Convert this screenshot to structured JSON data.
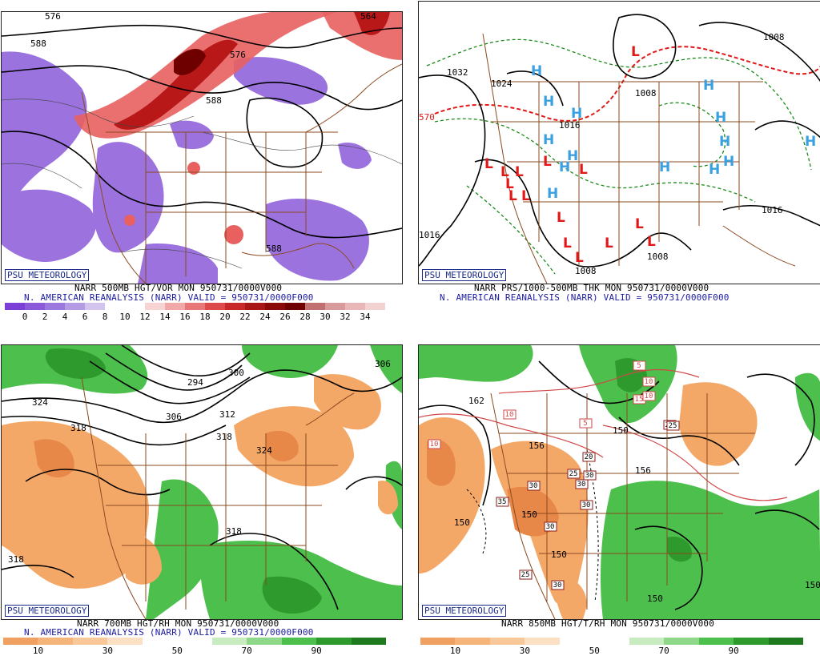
{
  "credit_label": "PSU METEOROLOGY",
  "panels": [
    {
      "id": "p1",
      "caption_line1": "NARR 500MB HGT/VOR MON 950731/0000V000",
      "caption_line2": "N. AMERICAN REANALYSIS (NARR) VALID = 950731/0000F000",
      "colorbar": {
        "colors": [
          "#7b3fd8",
          "#8a5ad9",
          "#9b78dd",
          "#b59be4",
          "#d3c4ef",
          "#ffffff",
          "#ffffff",
          "#f7d3d3",
          "#f0a8a8",
          "#e87878",
          "#dd4a4a",
          "#c82828",
          "#a81616",
          "#8a0a0a",
          "#6e0000",
          "#c07070",
          "#d89a9a",
          "#e9b7b7",
          "#f3d2d2"
        ],
        "labels": [
          "0",
          "2",
          "4",
          "6",
          "8",
          "10",
          "12",
          "14",
          "16",
          "18",
          "20",
          "22",
          "24",
          "26",
          "28",
          "30",
          "32",
          "34"
        ]
      },
      "map_labels": [
        "576",
        "588",
        "576",
        "588",
        "564",
        "588"
      ]
    },
    {
      "id": "p2",
      "caption_line1": "NARR PRS/1000-500MB THK MON 950731/0000V000",
      "caption_line2": "N. AMERICAN REANALYSIS (NARR) VALID = 950731/0000F000",
      "map_labels": [
        "1032",
        "1024",
        "1008",
        "1016",
        "1008",
        "1008",
        "1016",
        "1016",
        "1008",
        "570"
      ],
      "highs": [
        "H",
        "H",
        "H",
        "H",
        "H",
        "H",
        "H",
        "H",
        "H",
        "H",
        "H",
        "H",
        "H",
        "H"
      ],
      "lows": [
        "L",
        "L",
        "L",
        "L",
        "L",
        "L",
        "L",
        "L",
        "L",
        "L",
        "L",
        "L",
        "L",
        "L",
        "L"
      ]
    },
    {
      "id": "p3",
      "caption_line1": "NARR 700MB HGT/RH MON 950731/0000V000",
      "caption_line2": "N. AMERICAN REANALYSIS (NARR) VALID = 950731/0000F000",
      "colorbar": {
        "colors": [
          "#f0a060",
          "#f4b47a",
          "#f8c898",
          "#fce0c4",
          "#ffffff",
          "#ffffff",
          "#c8ecc0",
          "#8fd88a",
          "#4cbf4c",
          "#2e9a2e",
          "#1f7a1f"
        ],
        "labels": [
          "10",
          "30",
          "50",
          "70",
          "90"
        ]
      },
      "map_labels": [
        "324",
        "318",
        "294",
        "300",
        "306",
        "312",
        "318",
        "324",
        "318",
        "318",
        "306"
      ]
    },
    {
      "id": "p4",
      "caption_line1": "NARR 850MB HGT/T/RH MON 950731/0000V000",
      "colorbar": {
        "colors": [
          "#f0a060",
          "#f4b47a",
          "#f8c898",
          "#fce0c4",
          "#ffffff",
          "#ffffff",
          "#c8ecc0",
          "#8fd88a",
          "#4cbf4c",
          "#2e9a2e",
          "#1f7a1f"
        ],
        "labels": [
          "10",
          "30",
          "50",
          "70",
          "90"
        ]
      },
      "map_labels": [
        "162",
        "156",
        "150",
        "150",
        "150",
        "150",
        "156",
        "150",
        "150"
      ],
      "temp_boxes": [
        "5",
        "10",
        "15",
        "10",
        "10",
        "20",
        "25",
        "25",
        "30",
        "30",
        "30",
        "35",
        "30",
        "30",
        "25",
        "30",
        "10",
        "5",
        "25"
      ]
    }
  ]
}
